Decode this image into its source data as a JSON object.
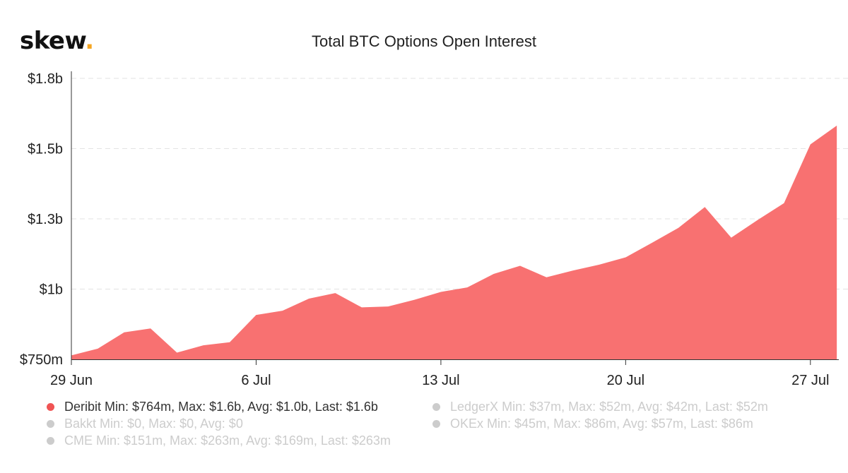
{
  "logo": {
    "text": "skew",
    "dot": "."
  },
  "chart_data": {
    "type": "area",
    "title": "Total BTC Options Open Interest",
    "xlabel": "",
    "ylabel": "",
    "x_ticks": [
      "29 Jun",
      "6 Jul",
      "13 Jul",
      "20 Jul",
      "27 Jul"
    ],
    "x_tick_dates": [
      "2020-06-29",
      "2020-07-06",
      "2020-07-13",
      "2020-07-20",
      "2020-07-27"
    ],
    "y_ticks": [
      "$750m",
      "$1b",
      "$1.3b",
      "$1.5b",
      "$1.8b"
    ],
    "y_tick_values": [
      750,
      1000,
      1250,
      1500,
      1750
    ],
    "ylim": [
      750,
      1750
    ],
    "y_unit": "$m",
    "grid": "horizontal dashed",
    "legend_position": "bottom",
    "series": [
      {
        "name": "Deribit",
        "color": "#f87171",
        "visible": true,
        "x": [
          "2020-06-29",
          "2020-06-30",
          "2020-07-01",
          "2020-07-02",
          "2020-07-03",
          "2020-07-04",
          "2020-07-05",
          "2020-07-06",
          "2020-07-07",
          "2020-07-08",
          "2020-07-09",
          "2020-07-10",
          "2020-07-11",
          "2020-07-12",
          "2020-07-13",
          "2020-07-14",
          "2020-07-15",
          "2020-07-16",
          "2020-07-17",
          "2020-07-18",
          "2020-07-19",
          "2020-07-20",
          "2020-07-21",
          "2020-07-22",
          "2020-07-23",
          "2020-07-24",
          "2020-07-25",
          "2020-07-26",
          "2020-07-27",
          "2020-07-28"
        ],
        "values": [
          764,
          788,
          846,
          860,
          774,
          800,
          811,
          908,
          923,
          966,
          986,
          935,
          938,
          962,
          990,
          1006,
          1054,
          1083,
          1042,
          1066,
          1087,
          1113,
          1165,
          1218,
          1292,
          1183,
          1246,
          1306,
          1515,
          1582
        ]
      },
      {
        "name": "LedgerX",
        "color": "#cccccc",
        "visible": false,
        "values": []
      },
      {
        "name": "Bakkt",
        "color": "#cccccc",
        "visible": false,
        "values": []
      },
      {
        "name": "OKEx",
        "color": "#cccccc",
        "visible": false,
        "values": []
      },
      {
        "name": "CME",
        "color": "#cccccc",
        "visible": false,
        "values": []
      }
    ]
  },
  "legend": [
    {
      "name": "Deribit",
      "stats": "Min: $764m, Max: $1.6b, Avg: $1.0b, Last: $1.6b",
      "state": "active",
      "color": "#f05454"
    },
    {
      "name": "LedgerX",
      "stats": "Min: $37m, Max: $52m, Avg: $42m, Last: $52m",
      "state": "inactive",
      "color": "#cccccc"
    },
    {
      "name": "Bakkt",
      "stats": "Min: $0, Max: $0, Avg: $0",
      "state": "inactive",
      "color": "#cccccc"
    },
    {
      "name": "OKEx",
      "stats": "Min: $45m, Max: $86m, Avg: $57m, Last: $86m",
      "state": "inactive",
      "color": "#cccccc"
    },
    {
      "name": "CME",
      "stats": "Min: $151m, Max: $263m, Avg: $169m, Last: $263m",
      "state": "inactive",
      "color": "#cccccc"
    }
  ]
}
